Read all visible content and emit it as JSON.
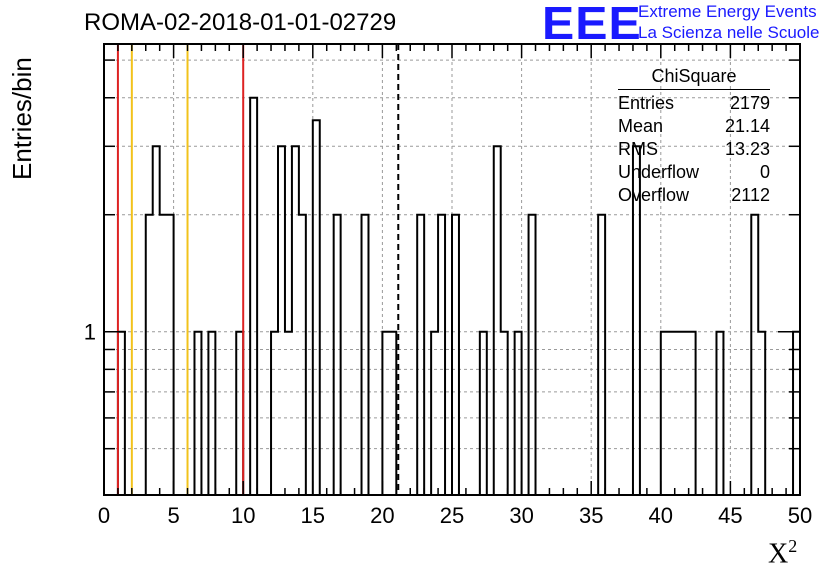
{
  "header": {
    "run_title": "ROMA-02-2018-01-01-02729",
    "logo_text": "EEE",
    "logo_line1": "Extreme Energy Events",
    "logo_line2": "La Scienza nelle Scuole",
    "logo_color": "#1a1aff"
  },
  "chart_data": {
    "type": "bar",
    "histogram": true,
    "xlabel": "X",
    "xlabel_superscript": "2",
    "ylabel": "Entries/bin",
    "xlim": [
      0,
      50
    ],
    "ylim": [
      0.38,
      5.5
    ],
    "log_y": true,
    "bin_width": 0.5,
    "x_tick_labels": [
      "0",
      "5",
      "10",
      "15",
      "20",
      "25",
      "30",
      "35",
      "40",
      "45",
      "50"
    ],
    "y_tick_labels": [
      "1"
    ],
    "grid": true,
    "bins": [
      {
        "x": 1.0,
        "y": 1
      },
      {
        "x": 3.0,
        "y": 2
      },
      {
        "x": 3.5,
        "y": 3
      },
      {
        "x": 4.0,
        "y": 2
      },
      {
        "x": 4.5,
        "y": 2
      },
      {
        "x": 6.5,
        "y": 1
      },
      {
        "x": 7.5,
        "y": 1
      },
      {
        "x": 9.5,
        "y": 1
      },
      {
        "x": 10.5,
        "y": 4
      },
      {
        "x": 12.0,
        "y": 1
      },
      {
        "x": 12.5,
        "y": 3
      },
      {
        "x": 13.0,
        "y": 1
      },
      {
        "x": 13.5,
        "y": 3
      },
      {
        "x": 14.0,
        "y": 2
      },
      {
        "x": 15.0,
        "y": 3.5
      },
      {
        "x": 16.5,
        "y": 2
      },
      {
        "x": 18.5,
        "y": 2
      },
      {
        "x": 20.0,
        "y": 1
      },
      {
        "x": 20.5,
        "y": 1
      },
      {
        "x": 22.5,
        "y": 2
      },
      {
        "x": 23.5,
        "y": 1
      },
      {
        "x": 24.0,
        "y": 2
      },
      {
        "x": 25.0,
        "y": 2
      },
      {
        "x": 27.0,
        "y": 1
      },
      {
        "x": 28.0,
        "y": 3
      },
      {
        "x": 28.5,
        "y": 1
      },
      {
        "x": 29.5,
        "y": 1
      },
      {
        "x": 30.5,
        "y": 2
      },
      {
        "x": 35.5,
        "y": 2
      },
      {
        "x": 38.0,
        "y": 3
      },
      {
        "x": 40.0,
        "y": 1
      },
      {
        "x": 40.5,
        "y": 1
      },
      {
        "x": 41.0,
        "y": 1
      },
      {
        "x": 41.5,
        "y": 1
      },
      {
        "x": 42.0,
        "y": 1
      },
      {
        "x": 44.0,
        "y": 1
      },
      {
        "x": 46.5,
        "y": 2
      },
      {
        "x": 47.0,
        "y": 1
      },
      {
        "x": 49.5,
        "y": 1
      }
    ],
    "vertical_lines": [
      {
        "x": 1.0,
        "color": "#dd2222",
        "style": "solid"
      },
      {
        "x": 2.0,
        "color": "#f2c21b",
        "style": "solid"
      },
      {
        "x": 6.0,
        "color": "#f2c21b",
        "style": "solid"
      },
      {
        "x": 10.0,
        "color": "#dd2222",
        "style": "solid"
      },
      {
        "x": 21.14,
        "color": "#000000",
        "style": "dashed"
      }
    ],
    "stats": {
      "name": "ChiSquare",
      "rows": [
        {
          "label": "Entries",
          "value": "2179"
        },
        {
          "label": "Mean",
          "value": "21.14"
        },
        {
          "label": "RMS",
          "value": "13.23"
        },
        {
          "label": "Underflow",
          "value": "0"
        },
        {
          "label": "Overflow",
          "value": "2112"
        }
      ]
    }
  }
}
